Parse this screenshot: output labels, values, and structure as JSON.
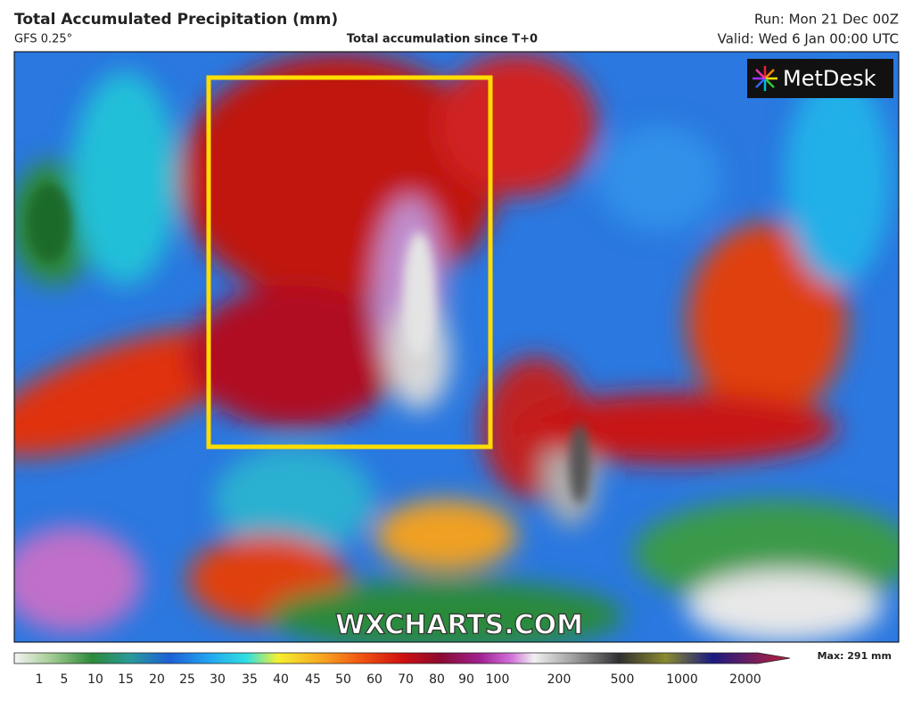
{
  "header": {
    "title": "Total Accumulated Precipitation (mm)",
    "model": "GFS 0.25°",
    "subtitle": "Total accumulation since T+0",
    "run": "Run: Mon 21 Dec 00Z",
    "valid": "Valid: Wed 6 Jan 00:00 UTC"
  },
  "logo": "MetDesk",
  "watermark": "WXCHARTS.COM",
  "legend": {
    "ticks": [
      1,
      5,
      10,
      15,
      20,
      25,
      30,
      35,
      40,
      45,
      50,
      60,
      70,
      80,
      90,
      100,
      200,
      500,
      1000,
      2000
    ],
    "max": "Max: 291 mm"
  }
}
